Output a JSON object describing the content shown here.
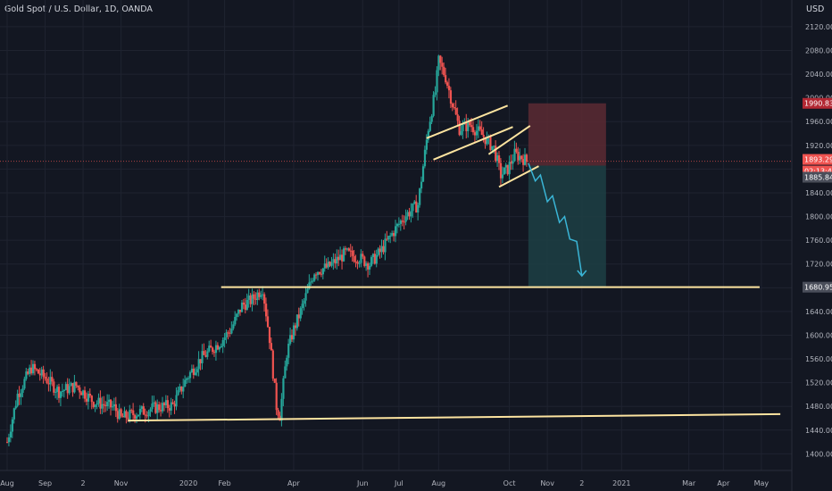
{
  "header": {
    "title": "Gold Spot / U.S. Dollar, 1D, OANDA",
    "currency": "USD"
  },
  "colors": {
    "background": "#131722",
    "grid": "#1f2330",
    "up": "#26a69a",
    "down": "#ef5350",
    "pattern": "#fde4a0",
    "target_arrow": "#3ab5d6",
    "stop_zone": "#5c2a33",
    "target_zone": "#1d3f44"
  },
  "chart_data": {
    "type": "candlestick",
    "title": "Gold Spot / U.S. Dollar, 1D, OANDA",
    "ylim": [
      1372,
      2165
    ],
    "y_ticks": [
      1400,
      1440,
      1480,
      1520,
      1560,
      1600,
      1640,
      1680,
      1720,
      1760,
      1800,
      1840,
      1880,
      1920,
      1960,
      2000,
      2040,
      2080,
      2120
    ],
    "x_ticks": [
      {
        "label": "Aug",
        "pos": 0
      },
      {
        "label": "Sep",
        "pos": 22
      },
      {
        "label": "2",
        "pos": 44
      },
      {
        "label": "Nov",
        "pos": 66
      },
      {
        "label": "2020",
        "pos": 105
      },
      {
        "label": "Feb",
        "pos": 126
      },
      {
        "label": "Apr",
        "pos": 166
      },
      {
        "label": "Jun",
        "pos": 206
      },
      {
        "label": "Jul",
        "pos": 227
      },
      {
        "label": "Aug",
        "pos": 250
      },
      {
        "label": "Oct",
        "pos": 291
      },
      {
        "label": "Nov",
        "pos": 313
      },
      {
        "label": "2",
        "pos": 333
      },
      {
        "label": "2021",
        "pos": 356
      },
      {
        "label": "Mar",
        "pos": 395
      },
      {
        "label": "Apr",
        "pos": 415
      },
      {
        "label": "May",
        "pos": 437
      }
    ],
    "x_range": [
      0,
      450
    ],
    "price_path": [
      [
        0,
        1420
      ],
      [
        6,
        1500
      ],
      [
        14,
        1545
      ],
      [
        22,
        1528
      ],
      [
        30,
        1505
      ],
      [
        40,
        1515
      ],
      [
        50,
        1488
      ],
      [
        62,
        1478
      ],
      [
        66,
        1460
      ],
      [
        74,
        1468
      ],
      [
        86,
        1478
      ],
      [
        96,
        1482
      ],
      [
        104,
        1528
      ],
      [
        112,
        1560
      ],
      [
        118,
        1575
      ],
      [
        124,
        1590
      ],
      [
        130,
        1612
      ],
      [
        136,
        1650
      ],
      [
        142,
        1660
      ],
      [
        148,
        1680
      ],
      [
        152,
        1595
      ],
      [
        156,
        1480
      ],
      [
        158,
        1465
      ],
      [
        162,
        1570
      ],
      [
        166,
        1610
      ],
      [
        170,
        1640
      ],
      [
        178,
        1708
      ],
      [
        186,
        1715
      ],
      [
        196,
        1738
      ],
      [
        204,
        1730
      ],
      [
        210,
        1720
      ],
      [
        216,
        1740
      ],
      [
        224,
        1775
      ],
      [
        230,
        1800
      ],
      [
        238,
        1820
      ],
      [
        244,
        1950
      ],
      [
        248,
        2010
      ],
      [
        250,
        2062
      ],
      [
        254,
        2035
      ],
      [
        258,
        1990
      ],
      [
        262,
        1948
      ],
      [
        268,
        1955
      ],
      [
        276,
        1935
      ],
      [
        282,
        1915
      ],
      [
        286,
        1870
      ],
      [
        290,
        1880
      ],
      [
        294,
        1905
      ],
      [
        298,
        1900
      ],
      [
        301,
        1893
      ]
    ],
    "current_price": 1893.298,
    "price_labels": [
      "1990.832",
      "1893.298",
      "02:13:41",
      "1885.840",
      "1680.952"
    ],
    "levels": {
      "stop": 1990.832,
      "entry": 1885.84,
      "target": 1680.952,
      "horizontal": 1680.952
    },
    "trendline": {
      "start": [
        70,
        1456
      ],
      "end": [
        448,
        1467
      ]
    },
    "support_line": {
      "start": [
        124,
        1681
      ],
      "end": [
        436,
        1681
      ]
    },
    "channels": [
      {
        "lines": [
          [
            [
              243,
              1932
            ],
            [
              290,
              1987
            ]
          ],
          [
            [
              247,
              1896
            ],
            [
              293,
              1951
            ]
          ]
        ]
      },
      {
        "lines": [
          [
            [
              279,
              1905
            ],
            [
              303,
              1953
            ]
          ],
          [
            [
              285,
              1850
            ],
            [
              308,
              1885
            ]
          ]
        ]
      }
    ],
    "position_box": {
      "x_start": 302,
      "x_end": 347
    },
    "forecast_path": [
      [
        302,
        1890
      ],
      [
        306,
        1860
      ],
      [
        309,
        1870
      ],
      [
        313,
        1825
      ],
      [
        316,
        1835
      ],
      [
        320,
        1790
      ],
      [
        323,
        1800
      ],
      [
        326,
        1762
      ],
      [
        330,
        1758
      ],
      [
        333,
        1700
      ]
    ]
  }
}
